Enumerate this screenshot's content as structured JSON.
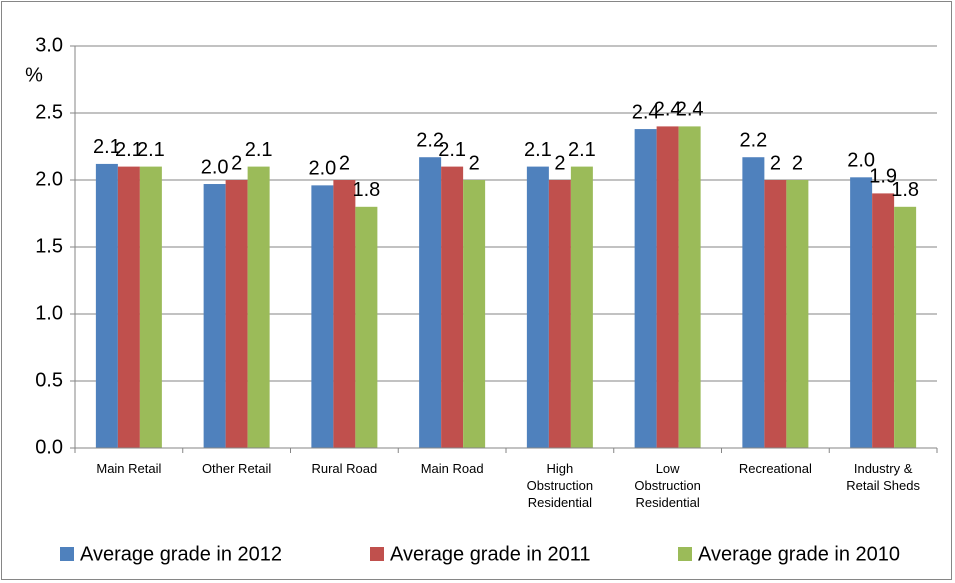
{
  "chart_data": {
    "type": "bar",
    "y_label": "%",
    "categories": [
      "Main Retail",
      "Other Retail",
      "Rural Road",
      "Main Road",
      "High Obstruction Residential",
      "Low Obstruction Residential",
      "Recreational",
      "Industry & Retail Sheds"
    ],
    "series": [
      {
        "name": "Average grade in 2012",
        "color": "#4f81bd",
        "values": [
          2.12,
          1.97,
          1.96,
          2.17,
          2.1,
          2.38,
          2.17,
          2.02
        ],
        "value_labels": [
          "2.1",
          "2.0",
          "2.0",
          "2.2",
          "2.1",
          "2.4",
          "2.2",
          "2.0"
        ]
      },
      {
        "name": "Average grade in 2011",
        "color": "#c0504d",
        "values": [
          2.1,
          2,
          2,
          2.1,
          2,
          2.4,
          2,
          1.9
        ],
        "value_labels": [
          "2.1",
          "2",
          "2",
          "2.1",
          "2",
          "2.4",
          "2",
          "1.9"
        ]
      },
      {
        "name": "Average grade in 2010",
        "color": "#9bbb59",
        "values": [
          2.1,
          2.1,
          1.8,
          2,
          2.1,
          2.4,
          2,
          1.8
        ],
        "value_labels": [
          "2.1",
          "2.1",
          "1.8",
          "2",
          "2.1",
          "2.4",
          "2",
          "1.8"
        ]
      }
    ],
    "ylim": [
      0,
      3
    ],
    "yticks": [
      {
        "value": 0,
        "label": "0.0"
      },
      0.5,
      {
        "value": 1,
        "label": "1.0"
      },
      1.5,
      {
        "value": 2,
        "label": "2.0"
      },
      2.5,
      {
        "value": 3,
        "label": "3.0"
      }
    ],
    "grid": true,
    "legend": "bottom"
  }
}
